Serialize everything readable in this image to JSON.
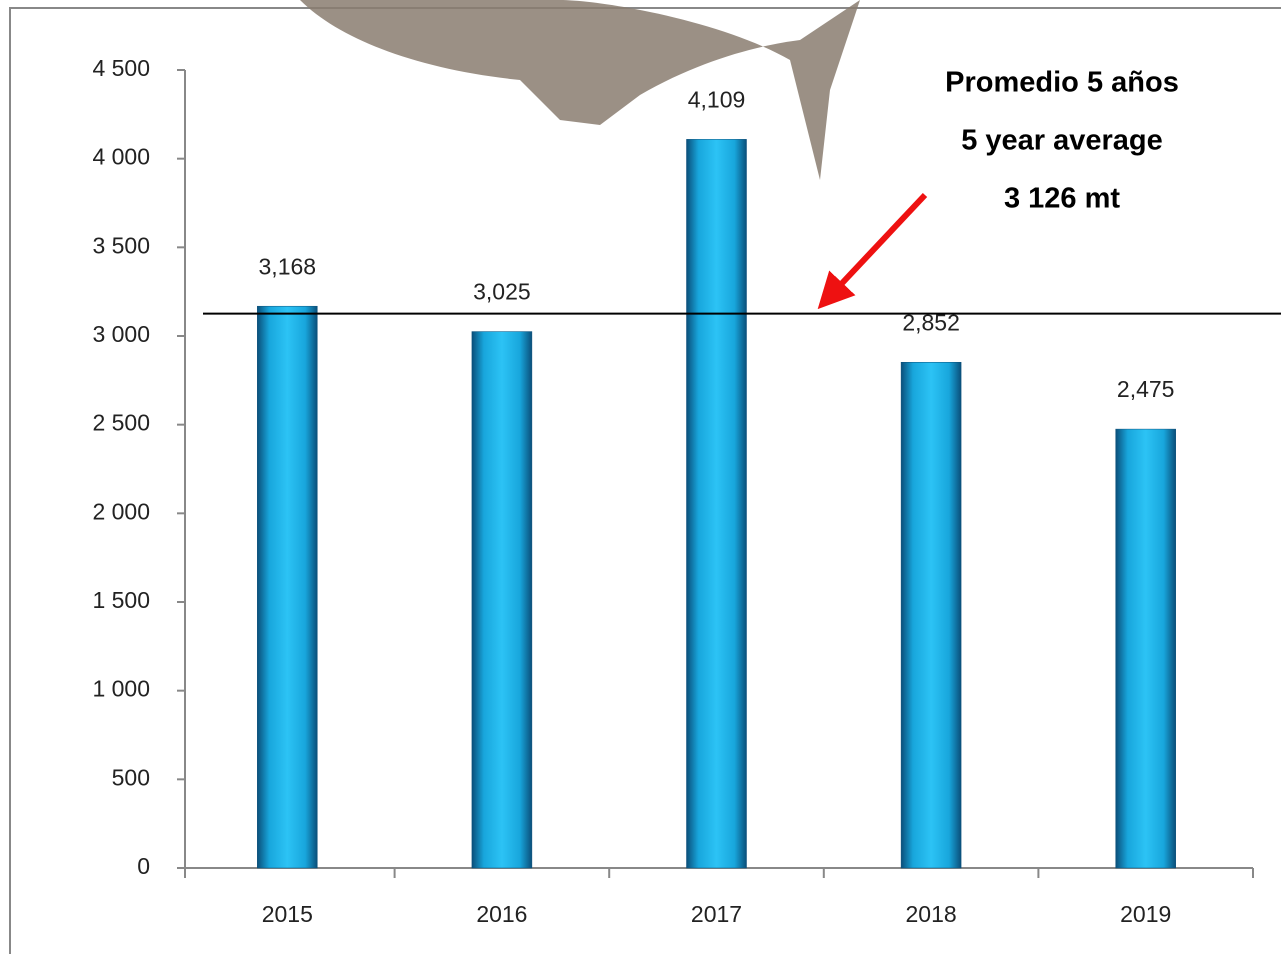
{
  "chart_data": {
    "type": "bar",
    "categories": [
      "2015",
      "2016",
      "2017",
      "2018",
      "2019"
    ],
    "values": [
      3168,
      3025,
      4109,
      2852,
      2475
    ],
    "value_labels": [
      "3,168",
      "3,025",
      "4,109",
      "2,852",
      "2,475"
    ],
    "color": "#1ab4e8",
    "ylim": [
      0,
      4500
    ],
    "yticks": [
      0,
      500,
      {
        "value": 1000,
        "label": "1 000"
      },
      {
        "value": 1500,
        "label": "1 500"
      },
      {
        "value": 2000,
        "label": "2 000"
      },
      {
        "value": 2500,
        "label": "2 500"
      },
      {
        "value": 3000,
        "label": "3 000"
      },
      {
        "value": 3500,
        "label": "3 500"
      },
      {
        "value": 4000,
        "label": "4 000"
      },
      {
        "value": 4500,
        "label": "4 500"
      }
    ],
    "grid": false,
    "reference_line": 3126,
    "annotation": [
      "Promedio 5 años",
      "5 year average",
      "3 126 mt"
    ]
  }
}
